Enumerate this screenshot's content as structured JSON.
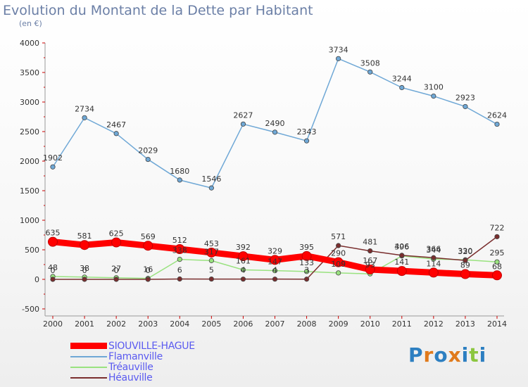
{
  "chart_data": {
    "type": "line",
    "title": "Evolution du Montant de la Dette par Habitant",
    "subtitle": "(en €)",
    "x": [
      "2000",
      "2001",
      "2002",
      "2003",
      "2004",
      "2005",
      "2006",
      "2007",
      "2008",
      "2009",
      "2010",
      "2011",
      "2012",
      "2013",
      "2014"
    ],
    "ylim": [
      -500,
      4000
    ],
    "yticks": [
      -500,
      0,
      500,
      1000,
      1500,
      2000,
      2500,
      3000,
      3500,
      4000
    ],
    "grid": false,
    "legend_position": "bottom-left",
    "series": [
      {
        "name": "SIOUVILLE-HAGUE",
        "color": "#ff0000",
        "values": [
          635,
          581,
          625,
          569,
          512,
          453,
          392,
          329,
          395,
          290,
          167,
          141,
          114,
          89,
          68
        ]
      },
      {
        "name": "Flamanville",
        "color": "#6fa8d6",
        "values": [
          1902,
          2734,
          2467,
          2029,
          1680,
          1546,
          2627,
          2490,
          2343,
          3734,
          3508,
          3244,
          3100,
          2923,
          2624
        ]
      },
      {
        "name": "Tréauville",
        "color": "#99e27f",
        "values": [
          48,
          38,
          27,
          16,
          338,
          317,
          161,
          147,
          133,
          109,
          93,
          396,
          344,
          330,
          295
        ]
      },
      {
        "name": "Héauville",
        "color": "#7a2e2e",
        "values": [
          0,
          0,
          0,
          0,
          6,
          5,
          4,
          4,
          3,
          571,
          481,
          406,
          366,
          320,
          722
        ]
      }
    ]
  },
  "logo": {
    "text": "Proxiti",
    "letters": [
      "P",
      "r",
      "o",
      "x",
      "i",
      "t",
      "i"
    ],
    "colors": [
      "#2d7fc1",
      "#e07a1c",
      "#2d7fc1",
      "#e07a1c",
      "#2d7fc1",
      "#8cc63f",
      "#2d7fc1"
    ]
  }
}
